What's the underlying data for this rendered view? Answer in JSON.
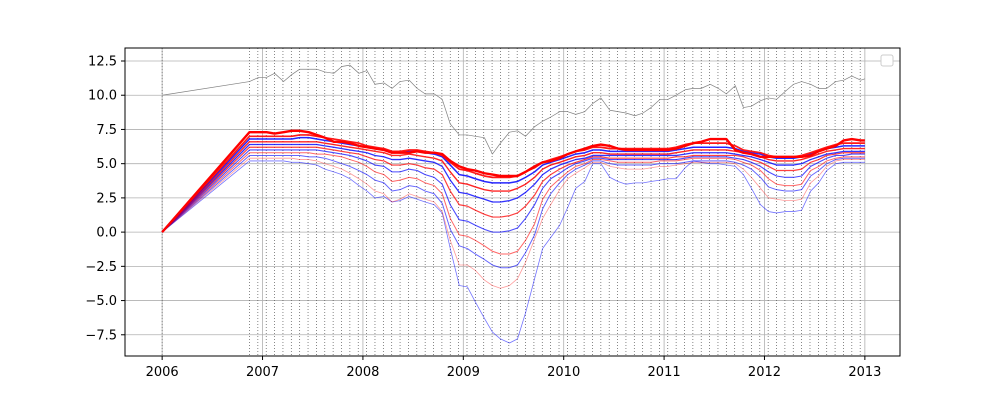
{
  "chart_data": {
    "type": "line",
    "title": "",
    "xlabel": "",
    "ylabel": "",
    "xlim": [
      2005.63,
      2013.35
    ],
    "ylim": [
      -9.05,
      13.45
    ],
    "x_ticks": [
      2006,
      2007,
      2008,
      2009,
      2010,
      2011,
      2012,
      2013
    ],
    "x_tick_labels": [
      "2006",
      "2007",
      "2008",
      "2009",
      "2010",
      "2011",
      "2012",
      "2013"
    ],
    "y_ticks": [
      -7.5,
      -5.0,
      -2.5,
      0.0,
      2.5,
      5.0,
      7.5,
      10.0,
      12.5
    ],
    "y_tick_labels": [
      "−7.5",
      "−5.0",
      "−2.5",
      "0.0",
      "2.5",
      "5.0",
      "7.5",
      "10.0",
      "12.5"
    ],
    "grid": true,
    "legend": {
      "location": "upper right",
      "entries": []
    },
    "monthly_vlines_from": 2006.87,
    "monthly_vlines_to": 2013.0,
    "colors": {
      "low_quantiles": "#0000ff",
      "high_quantiles": "#ff0000",
      "reference": "#808080"
    },
    "x": [
      2006.0,
      2006.87,
      2006.96,
      2007.04,
      2007.12,
      2007.21,
      2007.29,
      2007.37,
      2007.46,
      2007.54,
      2007.62,
      2007.71,
      2007.79,
      2007.87,
      2007.96,
      2008.04,
      2008.12,
      2008.21,
      2008.29,
      2008.37,
      2008.46,
      2008.54,
      2008.62,
      2008.71,
      2008.79,
      2008.87,
      2008.96,
      2009.04,
      2009.12,
      2009.21,
      2009.29,
      2009.37,
      2009.46,
      2009.54,
      2009.62,
      2009.71,
      2009.79,
      2009.87,
      2009.96,
      2010.04,
      2010.12,
      2010.21,
      2010.29,
      2010.37,
      2010.46,
      2010.54,
      2010.62,
      2010.71,
      2010.79,
      2010.87,
      2010.96,
      2011.04,
      2011.12,
      2011.21,
      2011.29,
      2011.37,
      2011.46,
      2011.54,
      2011.62,
      2011.71,
      2011.79,
      2011.87,
      2011.96,
      2012.04,
      2012.12,
      2012.21,
      2012.29,
      2012.37,
      2012.46,
      2012.54,
      2012.62,
      2012.71,
      2012.79,
      2012.87,
      2012.96,
      2013.0
    ],
    "reference_series": {
      "name": "",
      "values": [
        10.0,
        11.0,
        11.3,
        11.3,
        11.6,
        11.0,
        11.5,
        11.9,
        11.9,
        11.9,
        11.7,
        11.6,
        12.1,
        12.2,
        11.6,
        11.8,
        10.8,
        10.9,
        10.5,
        11.0,
        11.1,
        10.5,
        10.1,
        10.1,
        9.7,
        7.9,
        7.1,
        7.1,
        7.0,
        6.9,
        5.7,
        6.5,
        7.3,
        7.4,
        7.0,
        7.7,
        8.1,
        8.4,
        8.8,
        8.8,
        8.6,
        8.8,
        9.4,
        9.8,
        8.9,
        8.8,
        8.7,
        8.5,
        8.7,
        9.1,
        9.7,
        9.7,
        10.0,
        10.4,
        10.5,
        10.5,
        10.8,
        10.5,
        10.1,
        10.7,
        9.1,
        9.2,
        9.6,
        9.8,
        9.7,
        10.3,
        10.8,
        11.0,
        10.8,
        10.5,
        10.5,
        11.0,
        11.1,
        11.4,
        11.1,
        11.2
      ]
    },
    "series": [
      {
        "color": "#0000ff",
        "opacity": 0.55,
        "width": 0.8,
        "base": 5.0,
        "amp": 0.3,
        "values": [
          0.0,
          5.2,
          5.2,
          5.2,
          5.2,
          5.2,
          5.1,
          5.1,
          5.0,
          4.9,
          4.6,
          4.4,
          4.2,
          3.9,
          3.4,
          3.0,
          2.5,
          2.6,
          2.2,
          2.3,
          2.6,
          2.4,
          2.2,
          2.0,
          1.4,
          -1.2,
          -3.9,
          -4.0,
          -5.1,
          -6.3,
          -7.3,
          -7.8,
          -8.1,
          -7.8,
          -5.9,
          -3.4,
          -1.2,
          -0.4,
          0.5,
          1.8,
          3.2,
          3.7,
          5.0,
          5.0,
          4.0,
          3.7,
          3.5,
          3.6,
          3.6,
          3.7,
          3.8,
          3.9,
          3.9,
          4.7,
          5.2,
          5.1,
          5.0,
          5.0,
          4.9,
          4.8,
          4.2,
          3.2,
          2.0,
          1.5,
          1.4,
          1.5,
          1.5,
          1.6,
          3.0,
          3.6,
          4.5,
          5.0,
          5.1,
          5.1,
          5.1,
          5.1
        ]
      },
      {
        "color": "#ff0000",
        "opacity": 0.4,
        "width": 0.8,
        "values": [
          0.0,
          5.4,
          5.4,
          5.4,
          5.4,
          5.4,
          5.4,
          5.3,
          5.3,
          5.2,
          5.0,
          4.8,
          4.6,
          4.3,
          3.9,
          3.5,
          3.0,
          2.8,
          2.2,
          2.4,
          2.8,
          2.6,
          2.4,
          2.2,
          1.5,
          -0.6,
          -2.4,
          -2.4,
          -2.8,
          -3.5,
          -3.9,
          -4.1,
          -3.9,
          -3.4,
          -2.2,
          -0.5,
          1.0,
          2.0,
          3.1,
          3.9,
          4.3,
          4.7,
          5.1,
          5.1,
          4.8,
          4.7,
          4.6,
          4.6,
          4.6,
          4.7,
          4.8,
          4.8,
          4.9,
          5.0,
          5.1,
          5.1,
          5.1,
          5.1,
          5.1,
          5.0,
          4.6,
          4.0,
          3.2,
          2.5,
          2.4,
          2.3,
          2.3,
          2.4,
          3.6,
          4.1,
          4.8,
          5.2,
          5.3,
          5.3,
          5.3,
          5.3
        ]
      },
      {
        "color": "#0000ff",
        "opacity": 0.6,
        "width": 1.0,
        "values": [
          0.0,
          5.6,
          5.6,
          5.6,
          5.6,
          5.6,
          5.6,
          5.6,
          5.5,
          5.5,
          5.4,
          5.2,
          5.0,
          4.8,
          4.5,
          4.2,
          3.8,
          3.6,
          3.0,
          3.1,
          3.4,
          3.3,
          3.0,
          2.8,
          2.1,
          0.2,
          -1.0,
          -1.2,
          -1.6,
          -2.0,
          -2.4,
          -2.6,
          -2.6,
          -2.4,
          -1.5,
          -0.2,
          1.7,
          2.8,
          3.6,
          4.2,
          4.6,
          4.9,
          5.2,
          5.2,
          5.0,
          4.9,
          4.9,
          4.9,
          4.9,
          4.9,
          5.0,
          5.0,
          5.0,
          5.1,
          5.2,
          5.2,
          5.2,
          5.2,
          5.2,
          5.1,
          4.9,
          4.6,
          4.0,
          3.3,
          3.1,
          3.0,
          3.0,
          3.1,
          4.1,
          4.5,
          5.0,
          5.3,
          5.4,
          5.4,
          5.4,
          5.4
        ]
      },
      {
        "color": "#ff0000",
        "opacity": 0.6,
        "width": 1.0,
        "values": [
          0.0,
          5.8,
          5.8,
          5.8,
          5.8,
          5.8,
          5.8,
          5.8,
          5.8,
          5.7,
          5.7,
          5.6,
          5.5,
          5.3,
          5.1,
          4.8,
          4.4,
          4.2,
          3.7,
          3.8,
          4.0,
          3.9,
          3.6,
          3.4,
          2.8,
          1.0,
          -0.2,
          -0.3,
          -0.6,
          -1.0,
          -1.4,
          -1.6,
          -1.6,
          -1.4,
          -0.6,
          0.6,
          2.4,
          3.3,
          3.9,
          4.4,
          4.8,
          5.0,
          5.3,
          5.3,
          5.2,
          5.1,
          5.1,
          5.1,
          5.1,
          5.1,
          5.2,
          5.2,
          5.2,
          5.3,
          5.4,
          5.4,
          5.4,
          5.4,
          5.4,
          5.3,
          5.1,
          4.9,
          4.5,
          3.9,
          3.5,
          3.4,
          3.4,
          3.5,
          4.5,
          4.8,
          5.2,
          5.4,
          5.5,
          5.5,
          5.5,
          5.5
        ]
      },
      {
        "color": "#0000ff",
        "opacity": 0.7,
        "width": 1.1,
        "values": [
          0.0,
          6.0,
          6.0,
          6.0,
          6.0,
          6.0,
          6.0,
          6.0,
          6.0,
          6.0,
          5.9,
          5.8,
          5.7,
          5.6,
          5.4,
          5.2,
          4.9,
          4.8,
          4.4,
          4.4,
          4.6,
          4.5,
          4.2,
          4.0,
          3.5,
          2.0,
          0.9,
          0.8,
          0.5,
          0.2,
          0.0,
          0.0,
          0.1,
          0.3,
          1.0,
          2.0,
          3.2,
          3.9,
          4.3,
          4.7,
          5.0,
          5.2,
          5.4,
          5.4,
          5.3,
          5.3,
          5.3,
          5.3,
          5.3,
          5.3,
          5.3,
          5.3,
          5.3,
          5.4,
          5.5,
          5.5,
          5.5,
          5.5,
          5.5,
          5.4,
          5.3,
          5.1,
          4.8,
          4.4,
          4.1,
          4.0,
          4.0,
          4.1,
          4.8,
          5.1,
          5.4,
          5.6,
          5.6,
          5.7,
          5.7,
          5.7
        ]
      },
      {
        "color": "#ff0000",
        "opacity": 0.75,
        "width": 1.2,
        "values": [
          0.0,
          6.2,
          6.2,
          6.2,
          6.2,
          6.2,
          6.2,
          6.2,
          6.2,
          6.2,
          6.1,
          6.0,
          5.9,
          5.8,
          5.7,
          5.5,
          5.3,
          5.2,
          4.9,
          4.9,
          5.0,
          4.9,
          4.7,
          4.6,
          4.2,
          3.0,
          2.0,
          1.9,
          1.6,
          1.3,
          1.1,
          1.1,
          1.2,
          1.4,
          1.9,
          2.7,
          3.7,
          4.2,
          4.6,
          4.9,
          5.1,
          5.3,
          5.5,
          5.5,
          5.4,
          5.4,
          5.4,
          5.4,
          5.4,
          5.4,
          5.4,
          5.4,
          5.5,
          5.5,
          5.6,
          5.6,
          5.6,
          5.6,
          5.6,
          5.6,
          5.5,
          5.3,
          5.1,
          4.8,
          4.5,
          4.5,
          4.5,
          4.6,
          5.1,
          5.3,
          5.6,
          5.7,
          5.8,
          5.8,
          5.8,
          5.8
        ]
      },
      {
        "color": "#0000ff",
        "opacity": 0.8,
        "width": 1.3,
        "values": [
          0.0,
          6.4,
          6.4,
          6.4,
          6.4,
          6.4,
          6.4,
          6.4,
          6.4,
          6.4,
          6.3,
          6.2,
          6.1,
          6.0,
          5.9,
          5.8,
          5.6,
          5.5,
          5.3,
          5.3,
          5.4,
          5.3,
          5.2,
          5.1,
          4.8,
          3.8,
          2.9,
          2.8,
          2.6,
          2.4,
          2.2,
          2.2,
          2.3,
          2.5,
          2.9,
          3.5,
          4.2,
          4.6,
          4.9,
          5.1,
          5.3,
          5.4,
          5.6,
          5.6,
          5.6,
          5.6,
          5.6,
          5.6,
          5.6,
          5.6,
          5.6,
          5.6,
          5.6,
          5.7,
          5.8,
          5.8,
          5.8,
          5.8,
          5.8,
          5.7,
          5.6,
          5.5,
          5.3,
          5.1,
          4.9,
          4.9,
          4.9,
          5.0,
          5.3,
          5.5,
          5.7,
          5.8,
          5.9,
          5.9,
          5.9,
          5.9
        ]
      },
      {
        "color": "#ff0000",
        "opacity": 0.85,
        "width": 1.4,
        "values": [
          0.0,
          6.6,
          6.6,
          6.6,
          6.6,
          6.6,
          6.6,
          6.6,
          6.6,
          6.6,
          6.5,
          6.4,
          6.3,
          6.2,
          6.1,
          6.0,
          5.9,
          5.8,
          5.6,
          5.6,
          5.7,
          5.6,
          5.5,
          5.4,
          5.2,
          4.4,
          3.6,
          3.5,
          3.3,
          3.1,
          3.0,
          3.0,
          3.0,
          3.2,
          3.5,
          4.0,
          4.6,
          4.9,
          5.1,
          5.3,
          5.5,
          5.6,
          5.8,
          5.8,
          5.7,
          5.7,
          5.7,
          5.7,
          5.7,
          5.7,
          5.7,
          5.7,
          5.8,
          5.9,
          6.0,
          6.0,
          6.0,
          6.0,
          6.0,
          5.9,
          5.8,
          5.7,
          5.5,
          5.3,
          5.2,
          5.2,
          5.2,
          5.3,
          5.5,
          5.7,
          5.9,
          6.0,
          6.1,
          6.1,
          6.1,
          6.1
        ]
      },
      {
        "color": "#0000ff",
        "opacity": 0.85,
        "width": 1.5,
        "values": [
          0.0,
          6.8,
          6.8,
          6.8,
          6.8,
          6.8,
          6.8,
          6.9,
          6.9,
          6.8,
          6.7,
          6.6,
          6.5,
          6.4,
          6.3,
          6.2,
          6.1,
          6.0,
          5.8,
          5.8,
          5.9,
          5.9,
          5.8,
          5.7,
          5.5,
          4.9,
          4.2,
          4.1,
          3.9,
          3.7,
          3.6,
          3.6,
          3.6,
          3.7,
          4.0,
          4.4,
          4.9,
          5.1,
          5.3,
          5.5,
          5.7,
          5.8,
          6.0,
          6.0,
          5.9,
          5.9,
          5.9,
          5.9,
          5.9,
          5.9,
          5.9,
          5.9,
          6.0,
          6.1,
          6.2,
          6.2,
          6.2,
          6.2,
          6.2,
          6.1,
          5.9,
          5.8,
          5.7,
          5.5,
          5.4,
          5.4,
          5.4,
          5.5,
          5.7,
          5.9,
          6.1,
          6.2,
          6.3,
          6.3,
          6.3,
          6.3
        ]
      },
      {
        "color": "#ff0000",
        "opacity": 0.9,
        "width": 1.7,
        "values": [
          0.0,
          7.0,
          7.0,
          7.0,
          7.0,
          7.0,
          7.0,
          7.1,
          7.1,
          7.0,
          6.9,
          6.8,
          6.7,
          6.6,
          6.5,
          6.3,
          6.2,
          6.1,
          5.9,
          5.9,
          6.0,
          6.0,
          5.9,
          5.8,
          5.6,
          5.1,
          4.6,
          4.5,
          4.3,
          4.1,
          4.0,
          4.0,
          4.0,
          4.1,
          4.4,
          4.7,
          5.1,
          5.3,
          5.5,
          5.7,
          5.9,
          6.0,
          6.2,
          6.2,
          6.1,
          6.1,
          6.1,
          6.1,
          6.1,
          6.1,
          6.1,
          6.1,
          6.2,
          6.4,
          6.5,
          6.5,
          6.5,
          6.5,
          6.5,
          6.3,
          6.0,
          5.9,
          5.8,
          5.6,
          5.5,
          5.5,
          5.5,
          5.6,
          5.8,
          6.0,
          6.2,
          6.4,
          6.5,
          6.5,
          6.5,
          6.5
        ]
      },
      {
        "color": "#ff0000",
        "opacity": 1.0,
        "width": 2.4,
        "values": [
          0.0,
          7.3,
          7.3,
          7.3,
          7.2,
          7.3,
          7.4,
          7.4,
          7.3,
          7.1,
          6.9,
          6.6,
          6.6,
          6.5,
          6.3,
          6.2,
          6.1,
          6.0,
          5.8,
          5.8,
          5.8,
          5.9,
          5.8,
          5.8,
          5.7,
          5.2,
          4.8,
          4.6,
          4.5,
          4.3,
          4.2,
          4.1,
          4.1,
          4.1,
          4.4,
          4.8,
          5.1,
          5.2,
          5.4,
          5.7,
          5.9,
          6.1,
          6.3,
          6.4,
          6.3,
          6.1,
          6.0,
          6.0,
          6.0,
          6.0,
          6.0,
          6.0,
          6.1,
          6.3,
          6.5,
          6.6,
          6.8,
          6.8,
          6.8,
          6.0,
          5.8,
          5.7,
          5.5,
          5.5,
          5.5,
          5.5,
          5.5,
          5.5,
          5.6,
          5.9,
          6.1,
          6.3,
          6.7,
          6.8,
          6.7,
          6.7
        ]
      }
    ]
  }
}
